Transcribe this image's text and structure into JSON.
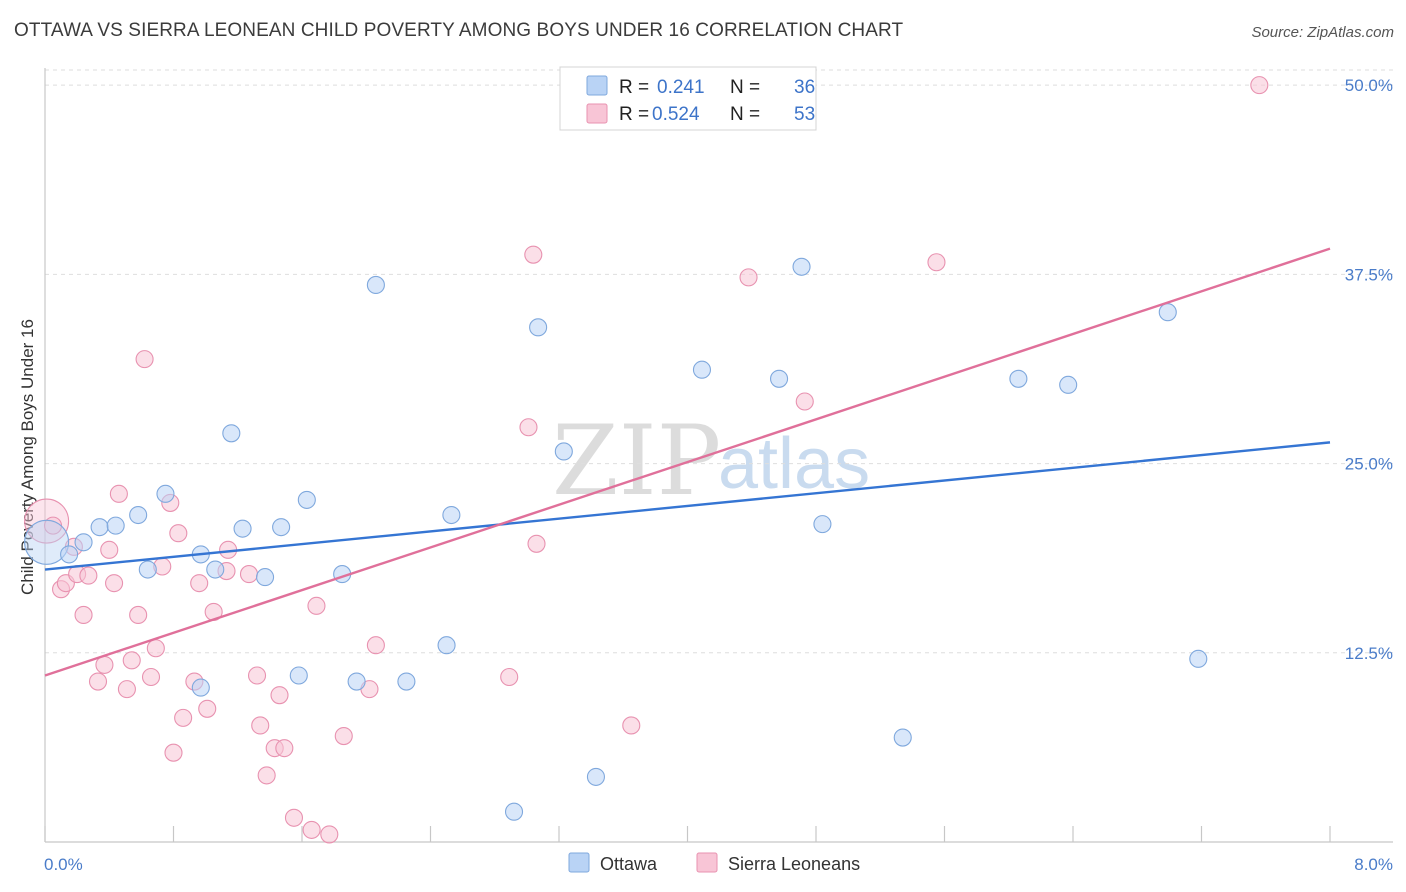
{
  "header": {
    "title": "OTTAWA VS SIERRA LEONEAN CHILD POVERTY AMONG BOYS UNDER 16 CORRELATION CHART",
    "source": "Source: ZipAtlas.com"
  },
  "watermark": {
    "zip": "ZIP",
    "atlas": "atlas"
  },
  "colors": {
    "ottawa_fill": "#b9d3f5",
    "ottawa_stroke": "#7fa8dd",
    "ottawa_line": "#3575d3",
    "sierra_fill": "#f8c5d6",
    "sierra_stroke": "#e892b0",
    "sierra_line": "#e0709a",
    "value_text": "#3d74c9",
    "label_text": "#222222"
  },
  "legend": {
    "rows": [
      {
        "r_label": "R =",
        "r_value": "0.241",
        "n_label": "N =",
        "n_value": "36"
      },
      {
        "r_label": "R =",
        "r_value": "0.524",
        "n_label": "N =",
        "n_value": "53"
      }
    ]
  },
  "chart_data": {
    "type": "scatter",
    "title": "OTTAWA VS SIERRA LEONEAN CHILD POVERTY AMONG BOYS UNDER 16 CORRELATION CHART",
    "xlabel": "",
    "ylabel": "Child Poverty Among Boys Under 16",
    "xlim": [
      0,
      8
    ],
    "ylim": [
      0,
      51
    ],
    "x_tick_labels": [
      "0.0%",
      "8.0%"
    ],
    "y_ticks": [
      12.5,
      25.0,
      37.5,
      50.0
    ],
    "y_tick_labels": [
      "12.5%",
      "25.0%",
      "37.5%",
      "50.0%"
    ],
    "series": [
      {
        "name": "Ottawa",
        "r": 0.241,
        "n": 36,
        "trend": {
          "x": [
            0,
            8
          ],
          "y": [
            18.0,
            26.4
          ]
        },
        "points": [
          {
            "x": 0.01,
            "y": 19.8,
            "big": true
          },
          {
            "x": 0.15,
            "y": 19.0
          },
          {
            "x": 0.24,
            "y": 19.8
          },
          {
            "x": 0.34,
            "y": 20.8
          },
          {
            "x": 0.44,
            "y": 20.9
          },
          {
            "x": 0.58,
            "y": 21.6
          },
          {
            "x": 0.64,
            "y": 18.0
          },
          {
            "x": 0.75,
            "y": 23.0
          },
          {
            "x": 0.97,
            "y": 10.2
          },
          {
            "x": 0.97,
            "y": 19.0
          },
          {
            "x": 1.06,
            "y": 18.0
          },
          {
            "x": 1.16,
            "y": 27.0
          },
          {
            "x": 1.23,
            "y": 20.7
          },
          {
            "x": 1.37,
            "y": 17.5
          },
          {
            "x": 1.47,
            "y": 20.8
          },
          {
            "x": 1.58,
            "y": 11.0
          },
          {
            "x": 1.63,
            "y": 22.6
          },
          {
            "x": 1.85,
            "y": 17.7
          },
          {
            "x": 1.94,
            "y": 10.6
          },
          {
            "x": 2.06,
            "y": 36.8
          },
          {
            "x": 2.25,
            "y": 10.6
          },
          {
            "x": 2.5,
            "y": 13.0
          },
          {
            "x": 2.53,
            "y": 21.6
          },
          {
            "x": 2.92,
            "y": 2.0
          },
          {
            "x": 3.07,
            "y": 34.0
          },
          {
            "x": 3.23,
            "y": 25.8
          },
          {
            "x": 3.43,
            "y": 4.3
          },
          {
            "x": 4.09,
            "y": 31.2
          },
          {
            "x": 4.57,
            "y": 30.6
          },
          {
            "x": 4.71,
            "y": 38.0
          },
          {
            "x": 4.84,
            "y": 21.0
          },
          {
            "x": 5.34,
            "y": 6.9
          },
          {
            "x": 6.06,
            "y": 30.6
          },
          {
            "x": 6.37,
            "y": 30.2
          },
          {
            "x": 6.99,
            "y": 35.0
          },
          {
            "x": 7.18,
            "y": 12.1
          }
        ]
      },
      {
        "name": "Sierra Leoneans",
        "r": 0.524,
        "n": 53,
        "trend": {
          "x": [
            0,
            8
          ],
          "y": [
            11.0,
            39.2
          ]
        },
        "points": [
          {
            "x": 0.01,
            "y": 21.2,
            "big": true
          },
          {
            "x": 0.05,
            "y": 20.9
          },
          {
            "x": 0.1,
            "y": 16.7
          },
          {
            "x": 0.13,
            "y": 17.1
          },
          {
            "x": 0.18,
            "y": 19.5
          },
          {
            "x": 0.2,
            "y": 17.7
          },
          {
            "x": 0.24,
            "y": 15.0
          },
          {
            "x": 0.27,
            "y": 17.6
          },
          {
            "x": 0.33,
            "y": 10.6
          },
          {
            "x": 0.37,
            "y": 11.7
          },
          {
            "x": 0.4,
            "y": 19.3
          },
          {
            "x": 0.43,
            "y": 17.1
          },
          {
            "x": 0.46,
            "y": 23.0
          },
          {
            "x": 0.51,
            "y": 10.1
          },
          {
            "x": 0.54,
            "y": 12.0
          },
          {
            "x": 0.58,
            "y": 15.0
          },
          {
            "x": 0.62,
            "y": 31.9
          },
          {
            "x": 0.66,
            "y": 10.9
          },
          {
            "x": 0.69,
            "y": 12.8
          },
          {
            "x": 0.73,
            "y": 18.2
          },
          {
            "x": 0.78,
            "y": 22.4
          },
          {
            "x": 0.8,
            "y": 5.9
          },
          {
            "x": 0.83,
            "y": 20.4
          },
          {
            "x": 0.86,
            "y": 8.2
          },
          {
            "x": 0.93,
            "y": 10.6
          },
          {
            "x": 0.96,
            "y": 17.1
          },
          {
            "x": 1.01,
            "y": 8.8
          },
          {
            "x": 1.05,
            "y": 15.2
          },
          {
            "x": 1.13,
            "y": 17.9
          },
          {
            "x": 1.14,
            "y": 19.3
          },
          {
            "x": 1.27,
            "y": 17.7
          },
          {
            "x": 1.32,
            "y": 11.0
          },
          {
            "x": 1.34,
            "y": 7.7
          },
          {
            "x": 1.38,
            "y": 4.4
          },
          {
            "x": 1.43,
            "y": 6.2
          },
          {
            "x": 1.46,
            "y": 9.7
          },
          {
            "x": 1.49,
            "y": 6.2
          },
          {
            "x": 1.55,
            "y": 1.6
          },
          {
            "x": 1.66,
            "y": 0.8
          },
          {
            "x": 1.69,
            "y": 15.6
          },
          {
            "x": 1.77,
            "y": 0.5
          },
          {
            "x": 1.86,
            "y": 7.0
          },
          {
            "x": 2.02,
            "y": 10.1
          },
          {
            "x": 2.06,
            "y": 13.0
          },
          {
            "x": 2.89,
            "y": 10.9
          },
          {
            "x": 3.01,
            "y": 27.4
          },
          {
            "x": 3.04,
            "y": 38.8
          },
          {
            "x": 3.06,
            "y": 19.7
          },
          {
            "x": 3.65,
            "y": 7.7
          },
          {
            "x": 4.38,
            "y": 37.3
          },
          {
            "x": 4.73,
            "y": 29.1
          },
          {
            "x": 5.55,
            "y": 38.3
          },
          {
            "x": 7.56,
            "y": 50.0
          }
        ]
      }
    ],
    "legend_position": "top-center"
  }
}
